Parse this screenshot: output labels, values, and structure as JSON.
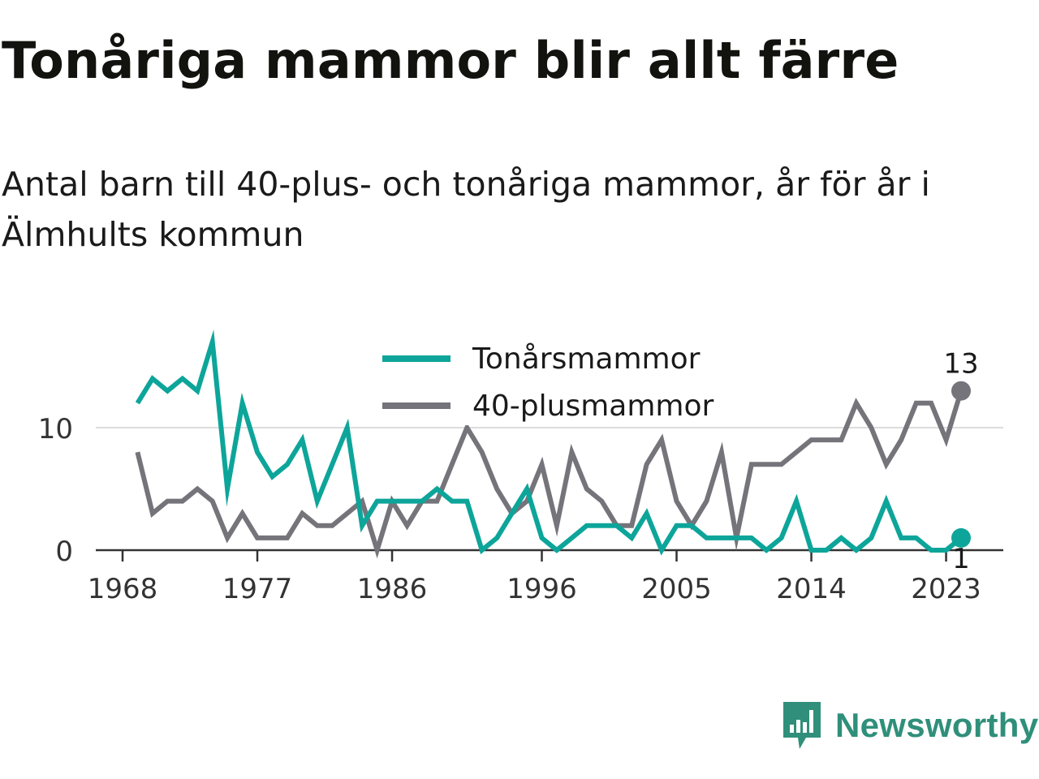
{
  "title": "Tonåriga mammor blir allt färre",
  "subtitle": "Antal barn till 40-plus- och tonåriga mammor, år för år i Älmhults kommun",
  "brand": "Newsworthy",
  "colors": {
    "teal": "#0da59a",
    "gray": "#75747a",
    "brand": "#2f8f7a"
  },
  "chart_data": {
    "type": "line",
    "x_ticks": [
      "1968",
      "1977",
      "1986",
      "1996",
      "2005",
      "2014",
      "2023"
    ],
    "y_ticks": [
      "0",
      "10"
    ],
    "ylim": [
      0,
      17
    ],
    "grid": true,
    "legend_position": "top-center",
    "series": [
      {
        "name": "Tonårsmammor",
        "color": "#0da59a",
        "end_label": "1",
        "x": [
          1969,
          1970,
          1971,
          1972,
          1973,
          1974,
          1975,
          1976,
          1977,
          1978,
          1979,
          1980,
          1981,
          1982,
          1983,
          1984,
          1985,
          1986,
          1987,
          1988,
          1989,
          1990,
          1991,
          1992,
          1993,
          1994,
          1995,
          1996,
          1997,
          1998,
          1999,
          2000,
          2001,
          2002,
          2003,
          2004,
          2005,
          2006,
          2007,
          2008,
          2009,
          2010,
          2011,
          2012,
          2013,
          2014,
          2015,
          2016,
          2017,
          2018,
          2019,
          2020,
          2021,
          2022,
          2023,
          2024
        ],
        "values": [
          12,
          14,
          13,
          14,
          13,
          17,
          5,
          12,
          8,
          6,
          7,
          9,
          4,
          7,
          10,
          2,
          4,
          4,
          4,
          4,
          5,
          4,
          4,
          0,
          1,
          3,
          5,
          1,
          0,
          1,
          2,
          2,
          2,
          1,
          3,
          0,
          2,
          2,
          1,
          1,
          1,
          1,
          0,
          1,
          4,
          0,
          0,
          1,
          0,
          1,
          4,
          1,
          1,
          0,
          0,
          1
        ]
      },
      {
        "name": "40-plusmammor",
        "color": "#75747a",
        "end_label": "13",
        "x": [
          1969,
          1970,
          1971,
          1972,
          1973,
          1974,
          1975,
          1976,
          1977,
          1978,
          1979,
          1980,
          1981,
          1982,
          1983,
          1984,
          1985,
          1986,
          1987,
          1988,
          1989,
          1990,
          1991,
          1992,
          1993,
          1994,
          1995,
          1996,
          1997,
          1998,
          1999,
          2000,
          2001,
          2002,
          2003,
          2004,
          2005,
          2006,
          2007,
          2008,
          2009,
          2010,
          2011,
          2012,
          2013,
          2014,
          2015,
          2016,
          2017,
          2018,
          2019,
          2020,
          2021,
          2022,
          2023,
          2024
        ],
        "values": [
          8,
          3,
          4,
          4,
          5,
          4,
          1,
          3,
          1,
          1,
          1,
          3,
          2,
          2,
          3,
          4,
          0,
          4,
          2,
          4,
          4,
          7,
          10,
          8,
          5,
          3,
          4,
          7,
          2,
          8,
          5,
          4,
          2,
          2,
          7,
          9,
          4,
          2,
          4,
          8,
          1,
          7,
          7,
          7,
          8,
          9,
          9,
          9,
          12,
          10,
          7,
          9,
          12,
          12,
          9,
          13
        ]
      }
    ]
  }
}
